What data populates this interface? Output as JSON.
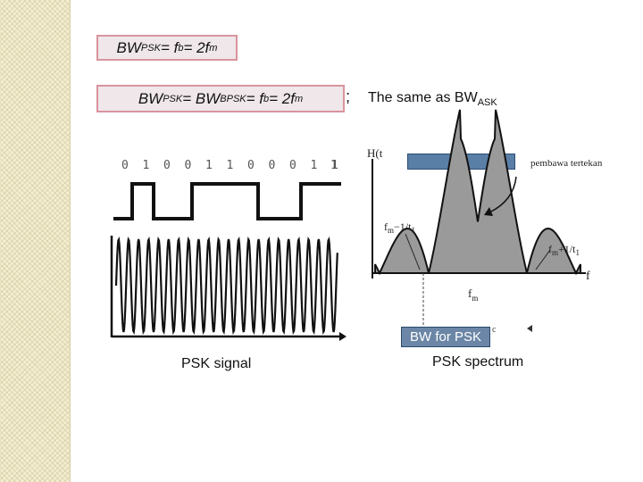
{
  "formulas": {
    "psk": {
      "bw": "BW",
      "bw_sub": "PSK",
      "rest1": " = f",
      "fb_sub": "b",
      "rest2": " = 2f",
      "fm_sub": "m"
    },
    "bpsk": {
      "bw": "BW",
      "bw_sub": "PSK",
      "mid": " = BW",
      "bpsk_sub": "BPSK",
      "rest1": " = f",
      "fb_sub": "b",
      "rest2": " = 2f",
      "fm_sub": "m"
    }
  },
  "semicolon": ";",
  "same_as": {
    "text": "The same as BW",
    "sub": "ASK"
  },
  "bits": [
    "0",
    "1",
    "0",
    "0",
    "1",
    "1",
    "0",
    "0",
    "0",
    "1",
    "1"
  ],
  "bit_end_partial": "1",
  "captions": {
    "signal": "PSK signal",
    "spectrum": "PSK spectrum"
  },
  "bw_label": "BW for PSK",
  "spectrum_labels": {
    "y_axis": "H(t",
    "carrier": "pembawa tertekan",
    "fm_minus": "f",
    "fm_minus_sub": "m",
    "fm_minus_tail": "−1/t",
    "fm_minus_tail_sub": "1",
    "fm_plus": "f",
    "fm_plus_sub": "m",
    "fm_plus_tail": "+1/t",
    "fm_plus_tail_sub": "1",
    "fm": "f",
    "fm_sub": "m",
    "f": "f",
    "tiny": "c"
  },
  "colors": {
    "box_border": "#d9949e",
    "box_fill": "#efe7ea",
    "bw_fill": "#6b86a6",
    "lobe_fill": "#9a9a9a"
  }
}
